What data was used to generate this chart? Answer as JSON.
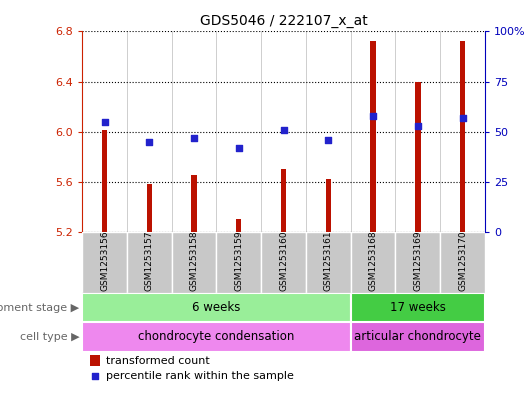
{
  "title": "GDS5046 / 222107_x_at",
  "samples": [
    "GSM1253156",
    "GSM1253157",
    "GSM1253158",
    "GSM1253159",
    "GSM1253160",
    "GSM1253161",
    "GSM1253168",
    "GSM1253169",
    "GSM1253170"
  ],
  "bar_values": [
    6.01,
    5.58,
    5.65,
    5.3,
    5.7,
    5.62,
    6.72,
    6.4,
    6.72
  ],
  "dot_values": [
    55,
    45,
    47,
    42,
    51,
    46,
    58,
    53,
    57
  ],
  "ylim": [
    5.2,
    6.8
  ],
  "y2lim": [
    0,
    100
  ],
  "yticks": [
    5.2,
    5.6,
    6.0,
    6.4,
    6.8
  ],
  "y2ticks": [
    0,
    25,
    50,
    75,
    100
  ],
  "y2ticklabels": [
    "0",
    "25",
    "50",
    "75",
    "100%"
  ],
  "bar_color": "#BB1100",
  "dot_color": "#2222CC",
  "bg_color": "#FFFFFF",
  "sample_bg": "#C8C8C8",
  "dev_stage_groups": [
    {
      "label": "6 weeks",
      "start": 0,
      "end": 6,
      "color": "#99EE99"
    },
    {
      "label": "17 weeks",
      "start": 6,
      "end": 9,
      "color": "#44CC44"
    }
  ],
  "cell_type_groups": [
    {
      "label": "chondrocyte condensation",
      "start": 0,
      "end": 6,
      "color": "#EE88EE"
    },
    {
      "label": "articular chondrocyte",
      "start": 6,
      "end": 9,
      "color": "#DD66DD"
    }
  ],
  "dev_stage_label": "development stage",
  "cell_type_label": "cell type",
  "legend_bar_label": "transformed count",
  "legend_dot_label": "percentile rank within the sample",
  "left_axis_color": "#CC2200",
  "right_axis_color": "#0000BB",
  "bar_width": 0.12
}
